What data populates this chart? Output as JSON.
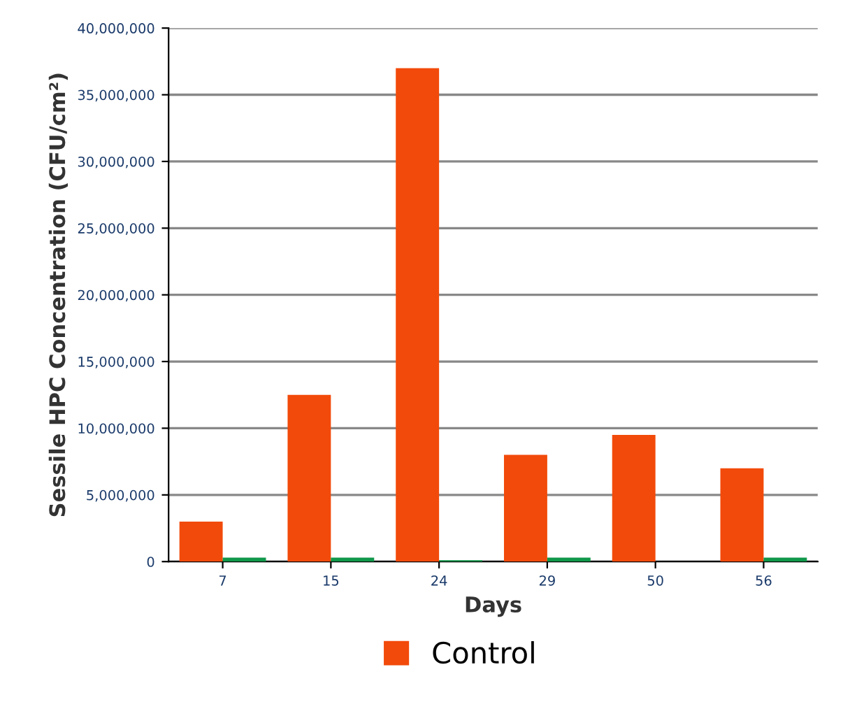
{
  "chart_data": {
    "type": "bar",
    "xlabel": "Days",
    "ylabel": "Sessile HPC Concentration (CFU/cm²)",
    "categories": [
      "7",
      "15",
      "24",
      "29",
      "50",
      "56"
    ],
    "series": [
      {
        "name": "Control",
        "color": "#f24a0a",
        "values": [
          3000000,
          12500000,
          37000000,
          8000000,
          9500000,
          7000000
        ]
      },
      {
        "color": "#10984a",
        "values": [
          300000,
          300000,
          100000,
          300000,
          null,
          300000
        ]
      }
    ],
    "ylim": [
      0,
      40000000
    ],
    "yticks": [
      {
        "value": 0,
        "label": "0"
      },
      {
        "value": 5000000,
        "label": "5,000,000"
      },
      {
        "value": 10000000,
        "label": "10,000,000"
      },
      {
        "value": 15000000,
        "label": "15,000,000"
      },
      {
        "value": 20000000,
        "label": "20,000,000"
      },
      {
        "value": 25000000,
        "label": "25,000,000"
      },
      {
        "value": 30000000,
        "label": "30,000,000"
      },
      {
        "value": 35000000,
        "label": "35,000,000"
      },
      {
        "value": 40000000,
        "label": "40,000,000"
      }
    ],
    "grid": "y",
    "legend": "bottom"
  }
}
